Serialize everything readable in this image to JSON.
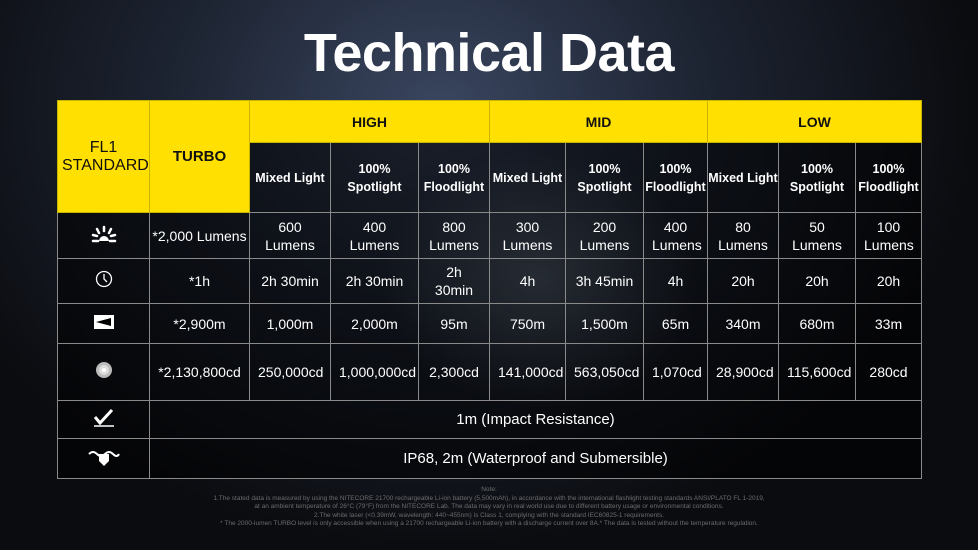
{
  "title": "Technical Data",
  "header": {
    "model": "FL1 STANDARD",
    "turbo": "TURBO",
    "groups": [
      "HIGH",
      "MID",
      "LOW"
    ],
    "modes": [
      "Mixed Light",
      "100% Spotlight",
      "100% Floodlight",
      "Mixed Light",
      "100% Spotlight",
      "100% Floodlight",
      "Mixed Light",
      "100% Spotlight",
      "100% Floodlight"
    ]
  },
  "rows": [
    {
      "icon": "brightness-icon",
      "name": "output",
      "turbo": "*2,000 Lumens",
      "values": [
        "600 Lumens",
        "400 Lumens",
        "800 Lumens",
        "300 Lumens",
        "200 Lumens",
        "400 Lumens",
        "80 Lumens",
        "50 Lumens",
        "100 Lumens"
      ]
    },
    {
      "icon": "clock-icon",
      "name": "runtime",
      "turbo": "*1h",
      "values": [
        "2h 30min",
        "2h 30min",
        "2h 30min",
        "4h",
        "3h 45min",
        "4h",
        "20h",
        "20h",
        "20h"
      ]
    },
    {
      "icon": "beam-distance-icon",
      "name": "beam-distance",
      "turbo": "*2,900m",
      "values": [
        "1,000m",
        "2,000m",
        "95m",
        "750m",
        "1,500m",
        "65m",
        "340m",
        "680m",
        "33m"
      ]
    },
    {
      "icon": "intensity-icon",
      "name": "peak-intensity",
      "turbo": "*2,130,800cd",
      "values": [
        "250,000cd",
        "1,000,000cd",
        "2,300cd",
        "141,000cd",
        "563,050cd",
        "1,070cd",
        "28,900cd",
        "115,600cd",
        "280cd"
      ]
    }
  ],
  "impact": {
    "icon": "impact-resistance-icon",
    "text": "1m (Impact Resistance)"
  },
  "waterproof": {
    "icon": "waterproof-icon",
    "text": "IP68, 2m (Waterproof and Submersible)"
  },
  "notes": [
    "Note:",
    "1.The stated data is measured by using the NITECORE 21700 rechargeable Li-ion battery (5,500mAh), in accordance with the international flashlight testing standards ANSI/PLATO FL 1-2019,",
    "at an ambient temperature of 26°C (79°F) from the NITECORE Lab. The data may vary in real world use due to different battery usage or environmental conditions.",
    "2.The white laser (<0.39mW, wavelength: 440~455nm) is Class 1, complying with the standard IEC60825-1 requirements.",
    "* The 2000-lumen TURBO level is only accessible when using a 21700 rechargeable Li-ion battery with a discharge current over 8A.* The data is tested without the temperature regulation."
  ]
}
